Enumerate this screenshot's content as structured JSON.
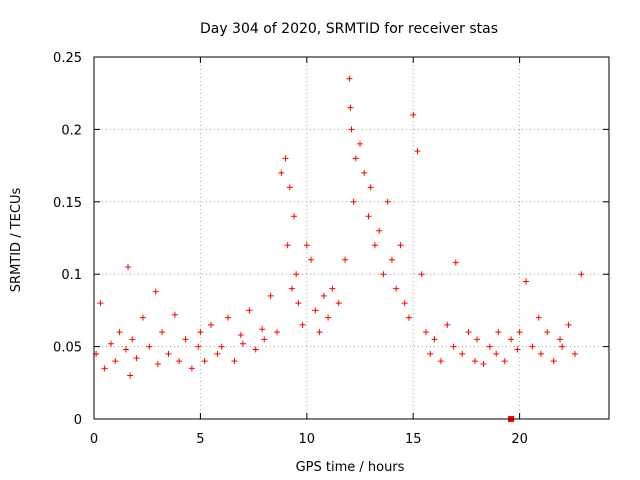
{
  "chart_data": {
    "type": "scatter",
    "title": "Day 304 of 2020, SRMTID for receiver stas",
    "xlabel": "GPS time / hours",
    "ylabel": "SRMTID / TECUs",
    "xlim": [
      0,
      24.2
    ],
    "ylim": [
      0,
      0.25
    ],
    "xticks": [
      0,
      5,
      10,
      15,
      20
    ],
    "xtick_labels": [
      "0",
      "5",
      "10",
      "15",
      "20"
    ],
    "yticks": [
      0,
      0.05,
      0.1,
      0.15,
      0.2,
      0.25
    ],
    "ytick_labels": [
      "0",
      "0.05",
      "0.1",
      "0.15",
      "0.2",
      "0.25"
    ],
    "grid": true,
    "marker": "+",
    "color": "#ff0000",
    "series": [
      {
        "name": "SRMTID",
        "x": [
          0.1,
          0.3,
          0.5,
          0.8,
          1.0,
          1.2,
          1.5,
          1.6,
          1.7,
          1.8,
          2.0,
          2.3,
          2.6,
          2.9,
          3.0,
          3.2,
          3.5,
          3.8,
          4.0,
          4.3,
          4.6,
          4.9,
          5.0,
          5.2,
          5.5,
          5.8,
          6.0,
          6.3,
          6.6,
          6.9,
          7.0,
          7.3,
          7.6,
          7.9,
          8.0,
          8.3,
          8.6,
          8.8,
          9.0,
          9.1,
          9.2,
          9.3,
          9.4,
          9.5,
          9.6,
          9.8,
          10.0,
          10.2,
          10.4,
          10.6,
          10.8,
          11.0,
          11.2,
          11.5,
          11.8,
          12.0,
          12.05,
          12.1,
          12.2,
          12.3,
          12.5,
          12.7,
          12.9,
          13.0,
          13.2,
          13.4,
          13.6,
          13.8,
          14.0,
          14.2,
          14.4,
          14.6,
          14.8,
          15.0,
          15.2,
          15.4,
          15.6,
          15.8,
          16.0,
          16.3,
          16.6,
          16.9,
          17.0,
          17.3,
          17.6,
          17.9,
          18.0,
          18.3,
          18.6,
          18.9,
          19.0,
          19.3,
          19.6,
          19.9,
          20.0,
          20.3,
          20.6,
          20.9,
          21.0,
          21.3,
          21.6,
          21.9,
          22.0,
          22.3,
          22.6,
          22.9
        ],
        "values": [
          0.045,
          0.08,
          0.035,
          0.052,
          0.04,
          0.06,
          0.048,
          0.105,
          0.03,
          0.055,
          0.042,
          0.07,
          0.05,
          0.088,
          0.038,
          0.06,
          0.045,
          0.072,
          0.04,
          0.055,
          0.035,
          0.05,
          0.06,
          0.04,
          0.065,
          0.045,
          0.05,
          0.07,
          0.04,
          0.058,
          0.052,
          0.075,
          0.048,
          0.062,
          0.055,
          0.085,
          0.06,
          0.17,
          0.18,
          0.12,
          0.16,
          0.09,
          0.14,
          0.1,
          0.08,
          0.065,
          0.12,
          0.11,
          0.075,
          0.06,
          0.085,
          0.07,
          0.09,
          0.08,
          0.11,
          0.235,
          0.215,
          0.2,
          0.15,
          0.18,
          0.19,
          0.17,
          0.14,
          0.16,
          0.12,
          0.13,
          0.1,
          0.15,
          0.11,
          0.09,
          0.12,
          0.08,
          0.07,
          0.21,
          0.185,
          0.1,
          0.06,
          0.045,
          0.055,
          0.04,
          0.065,
          0.05,
          0.108,
          0.045,
          0.06,
          0.04,
          0.055,
          0.038,
          0.05,
          0.045,
          0.06,
          0.04,
          0.055,
          0.048,
          0.06,
          0.095,
          0.05,
          0.07,
          0.045,
          0.06,
          0.04,
          0.055,
          0.05,
          0.065,
          0.045,
          0.1
        ]
      },
      {
        "name": "marker",
        "x": [
          19.6
        ],
        "values": [
          0.0
        ]
      }
    ]
  }
}
